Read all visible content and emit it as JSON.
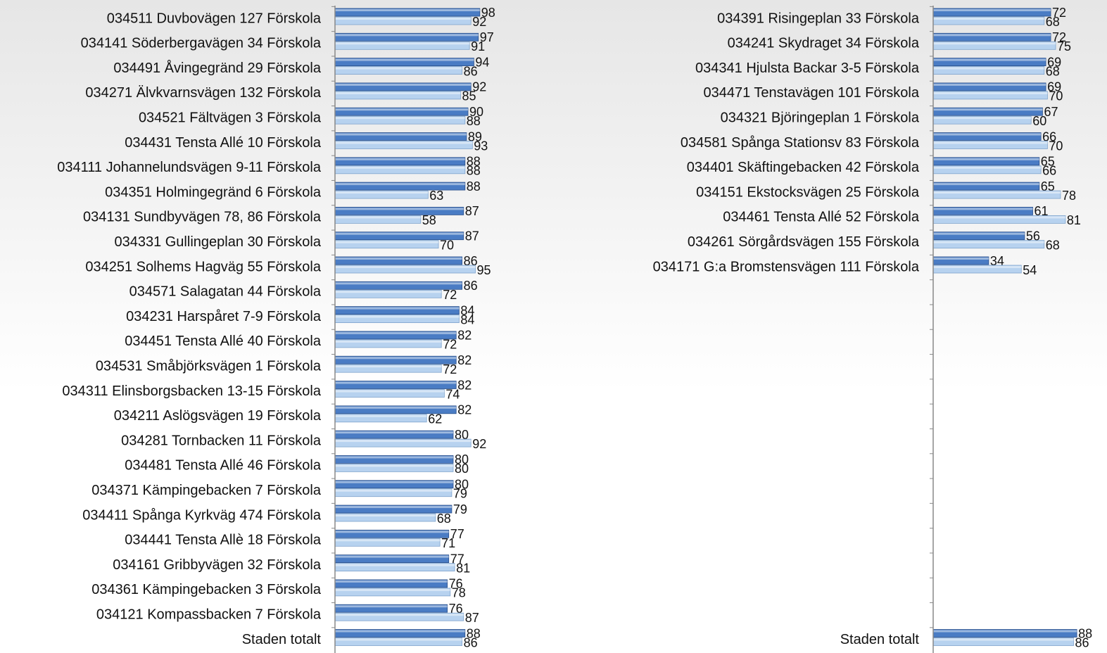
{
  "chart_data": [
    {
      "type": "bar",
      "categories": [
        "034511 Duvbovägen 127 Förskola",
        "034141 Söderbergavägen 34 Förskola",
        "034491 Åvingegränd 29 Förskola",
        "034271 Älvkvarnsvägen 132 Förskola",
        "034521 Fältvägen 3 Förskola",
        "034431 Tensta Allé 10 Förskola",
        "034111 Johannelundsvägen 9-11 Förskola",
        "034351 Holmingegränd 6 Förskola",
        "034131 Sundbyvägen 78, 86 Förskola",
        "034331 Gullingeplan 30 Förskola",
        "034251 Solhems Hagväg 55 Förskola",
        "034571 Salagatan 44 Förskola",
        "034231 Harspåret 7-9 Förskola",
        "034451 Tensta Allé 40 Förskola",
        "034531 Småbjörksvägen 1 Förskola",
        "034311 Elinsborgsbacken 13-15 Förskola",
        "034211 Aslögsvägen 19 Förskola",
        "034281 Tornbacken 11 Förskola",
        "034481 Tensta Allé 46 Förskola",
        "034371 Kämpingebacken 7 Förskola",
        "034411 Spånga Kyrkväg 474 Förskola",
        "034441 Tensta Allè 18 Förskola",
        "034161 Gribbyvägen 32 Förskola",
        "034361 Kämpingebacken 3 Förskola",
        "034121 Kompassbacken 7 Förskola",
        "Staden totalt"
      ],
      "series": [
        {
          "color": "#4a7cc4",
          "values": [
            98,
            97,
            94,
            92,
            90,
            89,
            88,
            88,
            87,
            87,
            86,
            86,
            84,
            82,
            82,
            82,
            82,
            80,
            80,
            80,
            79,
            77,
            77,
            76,
            76,
            88
          ]
        },
        {
          "color": "#b7d2ef",
          "values": [
            92,
            91,
            86,
            85,
            88,
            93,
            88,
            63,
            58,
            70,
            95,
            72,
            84,
            72,
            72,
            74,
            62,
            92,
            80,
            79,
            68,
            71,
            81,
            78,
            87,
            86
          ]
        }
      ],
      "xlim": [
        0,
        100
      ]
    },
    {
      "type": "bar",
      "categories": [
        "034391 Risingeplan 33 Förskola",
        "034241 Skydraget 34 Förskola",
        "034341 Hjulsta Backar 3-5 Förskola",
        "034471 Tenstavägen 101 Förskola",
        "034321 Björingeplan 1 Förskola",
        "034581 Spånga Stationsv 83 Förskola",
        "034401 Skäftingebacken 42 Förskola",
        "034151 Ekstocksvägen 25 Förskola",
        "034461 Tensta Allé 52 Förskola",
        "034261 Sörgårdsvägen 155 Förskola",
        "034171 G:a Bromstensvägen 111 Förskola",
        null,
        null,
        null,
        null,
        null,
        null,
        null,
        null,
        null,
        null,
        null,
        null,
        null,
        null,
        "Staden totalt"
      ],
      "series": [
        {
          "color": "#4a7cc4",
          "values": [
            72,
            72,
            69,
            69,
            67,
            66,
            65,
            65,
            61,
            56,
            34,
            null,
            null,
            null,
            null,
            null,
            null,
            null,
            null,
            null,
            null,
            null,
            null,
            null,
            null,
            88
          ]
        },
        {
          "color": "#b7d2ef",
          "values": [
            68,
            75,
            68,
            70,
            60,
            70,
            66,
            78,
            81,
            68,
            54,
            null,
            null,
            null,
            null,
            null,
            null,
            null,
            null,
            null,
            null,
            null,
            null,
            null,
            null,
            86
          ]
        }
      ],
      "xlim": [
        0,
        100
      ]
    }
  ]
}
